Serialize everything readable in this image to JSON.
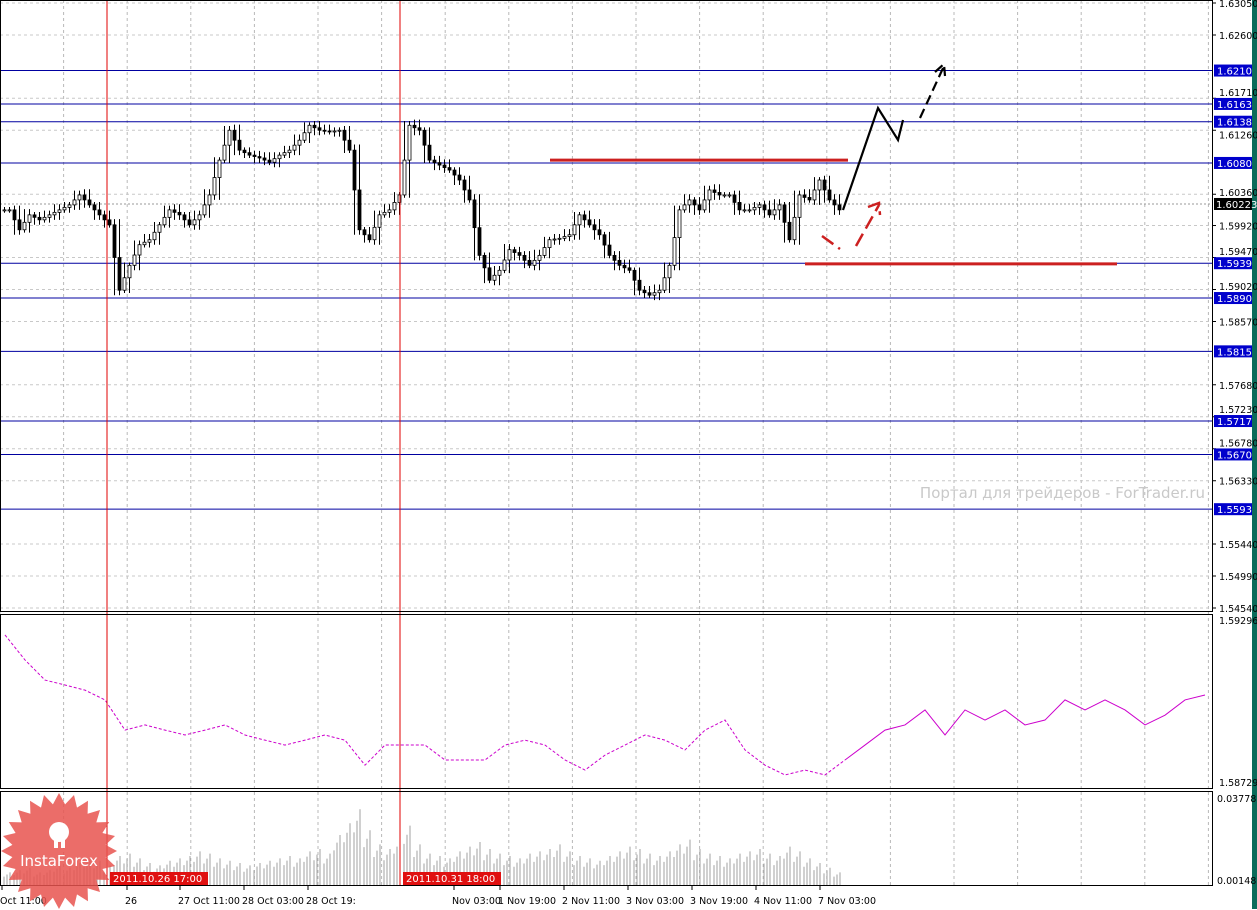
{
  "chart_data": [
    {
      "type": "candlestick",
      "panel": "price",
      "title": "",
      "ylim": [
        1.5454,
        1.6305
      ],
      "y_ticks": [
        "1.63050",
        "1.62600",
        "1.61710",
        "1.61260",
        "1.60360",
        "1.59920",
        "1.59470",
        "1.59020",
        "1.58570",
        "1.57680",
        "1.57230",
        "1.56780",
        "1.56330",
        "1.55440",
        "1.54990",
        "1.54540"
      ],
      "y_tick_values": [
        1.6305,
        1.626,
        1.6171,
        1.6126,
        1.6036,
        1.5992,
        1.5947,
        1.5902,
        1.5857,
        1.5768,
        1.5723,
        1.5678,
        1.5633,
        1.5544,
        1.5499,
        1.5454
      ],
      "closes": [
        1.6014,
        1.5986,
        1.6007,
        1.6,
        1.6007,
        1.6014,
        1.6021,
        1.6035,
        1.6021,
        1.6007,
        1.5993,
        1.5901,
        1.5936,
        1.5965,
        1.5972,
        1.5993,
        1.6014,
        1.6007,
        1.5993,
        1.6007,
        1.6035,
        1.6084,
        1.6126,
        1.6098,
        1.6091,
        1.6087,
        1.6081,
        1.6091,
        1.6098,
        1.6112,
        1.6133,
        1.6126,
        1.6124,
        1.6126,
        1.6098,
        1.5986,
        1.5972,
        1.6007,
        1.6014,
        1.6035,
        1.6133,
        1.6126,
        1.6084,
        1.6077,
        1.607,
        1.6056,
        1.6028,
        1.595,
        1.5915,
        1.5929,
        1.5958,
        1.595,
        1.5936,
        1.595,
        1.5972,
        1.5974,
        1.5979,
        1.6007,
        1.5993,
        1.5979,
        1.595,
        1.5936,
        1.5929,
        1.5901,
        1.5894,
        1.5901,
        1.5936,
        1.6014,
        1.6028,
        1.6014,
        1.6042,
        1.6035,
        1.6035,
        1.6014,
        1.6014,
        1.6021,
        1.6007,
        1.6021,
        1.5972,
        1.6035,
        1.6028,
        1.6056,
        1.6028,
        1.6014
      ],
      "current_price": "1.60223",
      "levels": [
        {
          "price": 1.621,
          "label": "1.6210"
        },
        {
          "price": 1.6163,
          "label": "1.6163"
        },
        {
          "price": 1.6138,
          "label": "1.6138"
        },
        {
          "price": 1.608,
          "label": "1.6080"
        },
        {
          "price": 1.5939,
          "label": "1.5939"
        },
        {
          "price": 1.589,
          "label": "1.5890"
        },
        {
          "price": 1.5815,
          "label": "1.5815"
        },
        {
          "price": 1.5717,
          "label": "1.5717"
        },
        {
          "price": 1.567,
          "label": "1.5670"
        },
        {
          "price": 1.5593,
          "label": "1.5593"
        }
      ],
      "resistance_line": 1.6084,
      "support_line": 1.5938,
      "grid": true
    },
    {
      "type": "line",
      "panel": "indicator",
      "ylim": [
        1.58729,
        1.59296
      ],
      "y_ticks": [
        "1.59296",
        "1.58729"
      ],
      "values": [
        1.59244,
        1.59157,
        1.59087,
        1.5907,
        1.59052,
        1.59018,
        1.58913,
        1.58931,
        1.58913,
        1.58896,
        1.58913,
        1.58931,
        1.58896,
        1.58878,
        1.58861,
        1.58878,
        1.58896,
        1.58878,
        1.58791,
        1.58861,
        1.58861,
        1.58861,
        1.58809,
        1.58809,
        1.58809,
        1.58861,
        1.58878,
        1.58861,
        1.58809,
        1.58774,
        1.58826,
        1.58861,
        1.58896,
        1.58878,
        1.58844,
        1.58913,
        1.58948,
        1.58844,
        1.58791,
        1.58757,
        1.58774,
        1.58757,
        1.58809,
        1.58861,
        1.58913,
        1.58931,
        1.58983,
        1.58896,
        1.58983,
        1.58948,
        1.58983,
        1.58931,
        1.58948,
        1.59018,
        1.58983,
        1.59018,
        1.58983,
        1.58931,
        1.58965,
        1.59018,
        1.59035
      ],
      "dashed_until_index": 42,
      "color": "#cc00cc"
    },
    {
      "type": "bar",
      "panel": "volume",
      "ylim": [
        0.00148,
        0.03778
      ],
      "y_ticks": [
        "0.03778",
        "0.00148"
      ],
      "values": [
        0.006,
        0.007,
        0.008,
        0.006,
        0.007,
        0.009,
        0.008,
        0.01,
        0.012,
        0.011,
        0.009,
        0.013,
        0.014,
        0.012,
        0.01,
        0.009,
        0.011,
        0.012,
        0.013,
        0.015,
        0.014,
        0.012,
        0.011,
        0.01,
        0.009,
        0.01,
        0.011,
        0.012,
        0.013,
        0.012,
        0.015,
        0.016,
        0.014,
        0.022,
        0.027,
        0.033,
        0.024,
        0.018,
        0.016,
        0.02,
        0.026,
        0.018,
        0.014,
        0.013,
        0.012,
        0.015,
        0.017,
        0.019,
        0.016,
        0.014,
        0.013,
        0.012,
        0.014,
        0.015,
        0.016,
        0.018,
        0.015,
        0.013,
        0.012,
        0.011,
        0.013,
        0.015,
        0.017,
        0.016,
        0.014,
        0.013,
        0.015,
        0.018,
        0.02,
        0.016,
        0.014,
        0.013,
        0.012,
        0.014,
        0.015,
        0.016,
        0.014,
        0.013,
        0.017,
        0.015,
        0.012,
        0.01,
        0.008,
        0.006
      ],
      "color": "#a0a0a0"
    }
  ],
  "x_axis": {
    "labels": [
      "Oct 11:00",
      "26",
      "27 Oct 11:00",
      "28 Oct 03:00",
      "28 Oct 19:",
      "Nov 03:00",
      "1 Nov 19:00",
      "2 Nov 11:00",
      "3 Nov 03:00",
      "3 Nov 19:00",
      "4 Nov 11:00",
      "7 Nov 03:00"
    ],
    "markers": [
      "2011.10.26 17:00",
      "2011.10.31 18:00"
    ]
  },
  "watermark": "Портал для трейдеров - ForTrader.ru",
  "logo": "InstaForex",
  "colors": {
    "level": "#0000a0",
    "level_label_bg": "#0000cc",
    "annotation_red": "#cc2020",
    "marker": "#e00000",
    "candle": "#000000"
  }
}
